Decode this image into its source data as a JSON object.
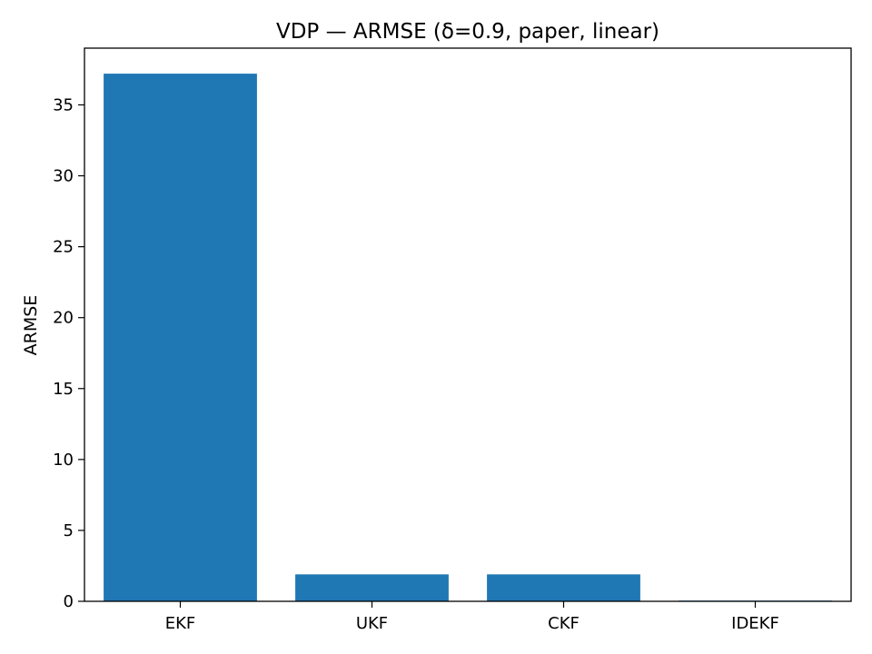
{
  "chart_data": {
    "type": "bar",
    "title": "VDP — ARMSE (δ=0.9, paper, linear)",
    "xlabel": "",
    "ylabel": "ARMSE",
    "categories": [
      "EKF",
      "UKF",
      "CKF",
      "IDEKF"
    ],
    "values": [
      37.2,
      1.9,
      1.9,
      0.05
    ],
    "ylim": [
      0,
      39
    ],
    "yticks": [
      0,
      5,
      10,
      15,
      20,
      25,
      30,
      35
    ],
    "grid": false,
    "legend": false,
    "bar_color": "#1f77b4"
  }
}
